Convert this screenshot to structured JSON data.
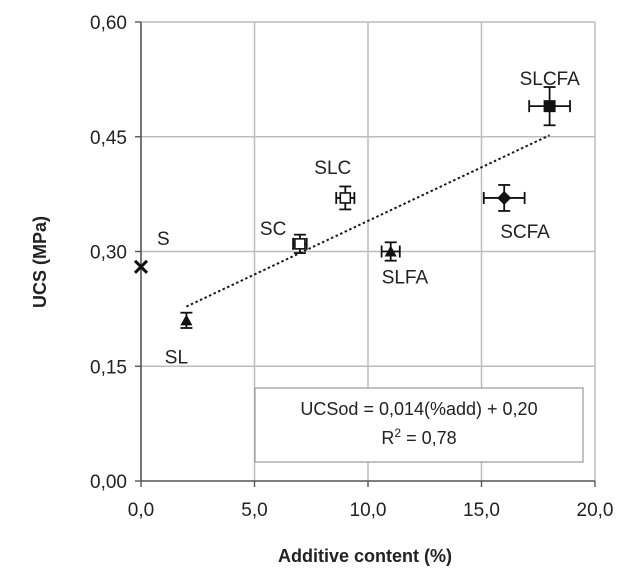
{
  "chart_data": {
    "type": "scatter",
    "title": "",
    "xlabel": "Additive content (%)",
    "ylabel": "UCS (MPa)",
    "xlim": [
      0,
      20
    ],
    "ylim": [
      0,
      0.6
    ],
    "x_ticks": [
      0,
      5,
      10,
      15,
      20
    ],
    "x_tick_labels": [
      "0,0",
      "5,0",
      "10,0",
      "15,0",
      "20,0"
    ],
    "y_ticks": [
      0,
      0.15,
      0.3,
      0.45,
      0.6
    ],
    "y_tick_labels": [
      "0,00",
      "0,15",
      "0,30",
      "0,45",
      "0,60"
    ],
    "grid": true,
    "points": [
      {
        "label": "S",
        "x": 0,
        "y": 0.28,
        "marker": "x",
        "xerr": 0,
        "yerr": 0
      },
      {
        "label": "SL",
        "x": 2,
        "y": 0.21,
        "marker": "triangle",
        "xerr": 0,
        "yerr": 0.01
      },
      {
        "label": "SC",
        "x": 7,
        "y": 0.31,
        "marker": "square-open",
        "xerr": 0.3,
        "yerr": 0.012
      },
      {
        "label": "SLC",
        "x": 9,
        "y": 0.37,
        "marker": "square-open",
        "xerr": 0.4,
        "yerr": 0.015
      },
      {
        "label": "SLFA",
        "x": 11,
        "y": 0.3,
        "marker": "triangle",
        "xerr": 0.4,
        "yerr": 0.012
      },
      {
        "label": "SCFA",
        "x": 16,
        "y": 0.37,
        "marker": "diamond",
        "xerr": 0.9,
        "yerr": 0.017
      },
      {
        "label": "SLCFA",
        "x": 18,
        "y": 0.49,
        "marker": "square",
        "xerr": 0.9,
        "yerr": 0.025
      }
    ],
    "trendline": {
      "slope": 0.014,
      "intercept": 0.2,
      "x_range": [
        2,
        18
      ]
    },
    "equation": "UCSod = 0,014(%add) + 0,20",
    "r2_prefix": "R",
    "r2_sup": "2",
    "r2_value": " = 0,78"
  }
}
